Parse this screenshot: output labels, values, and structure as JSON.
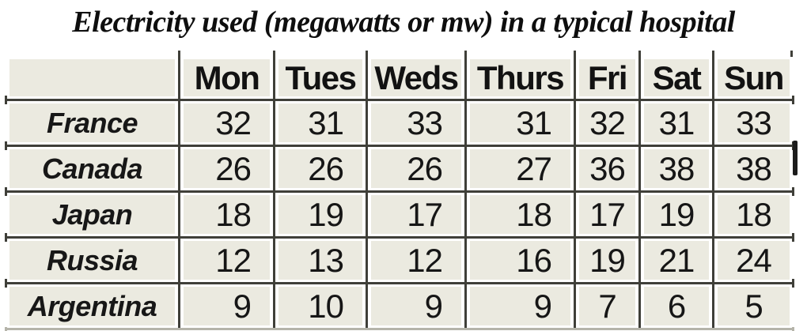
{
  "title": "Electricity used (megawatts or mw) in a typical hospital",
  "chart_data": {
    "type": "table",
    "title": "Electricity used (megawatts or mw) in a typical hospital",
    "columns": [
      "Mon",
      "Tues",
      "Weds",
      "Thurs",
      "Fri",
      "Sat",
      "Sun"
    ],
    "rows": [
      {
        "label": "France",
        "values": [
          32,
          31,
          33,
          31,
          32,
          31,
          33
        ]
      },
      {
        "label": "Canada",
        "values": [
          26,
          26,
          26,
          27,
          36,
          38,
          38
        ]
      },
      {
        "label": "Japan",
        "values": [
          18,
          19,
          17,
          18,
          17,
          19,
          18
        ]
      },
      {
        "label": "Russia",
        "values": [
          12,
          13,
          12,
          16,
          19,
          21,
          24
        ]
      },
      {
        "label": "Argentina",
        "values": [
          9,
          10,
          9,
          9,
          7,
          6,
          5
        ]
      }
    ]
  },
  "colors": {
    "page_bg": "#ffffff",
    "cell_bg": "#ebeae0",
    "grid_line": "#3f3f39",
    "text": "#141414"
  }
}
